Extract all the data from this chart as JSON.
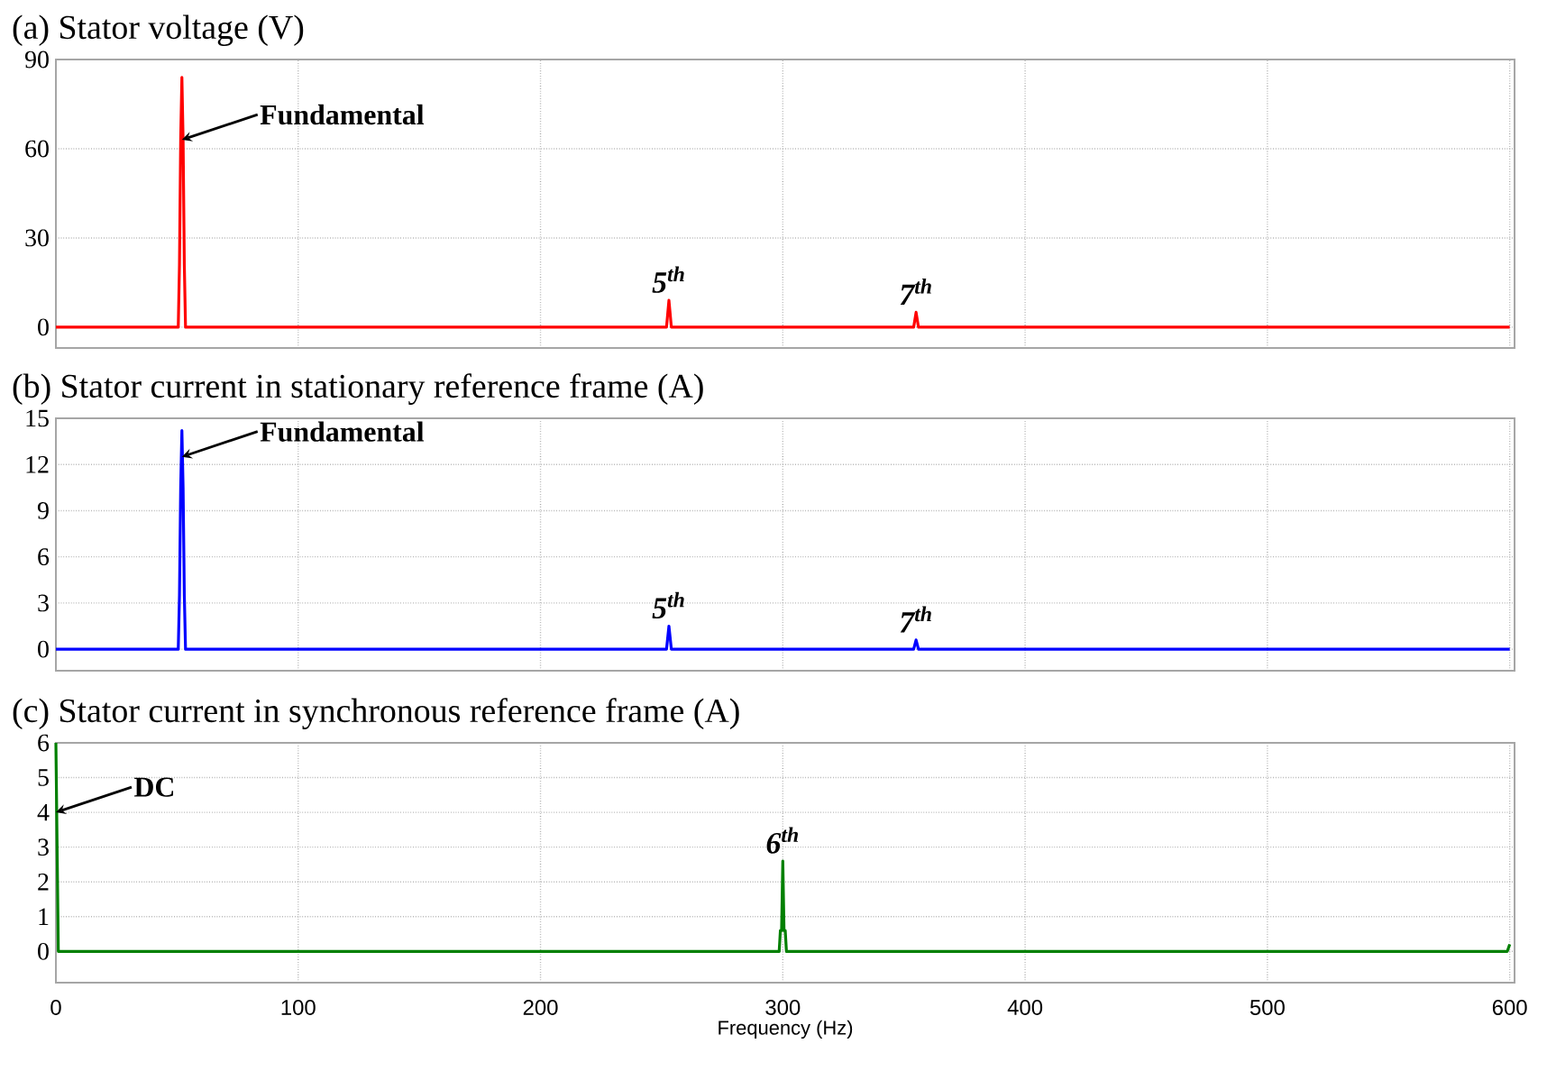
{
  "chart_data": [
    {
      "type": "line",
      "title": "(a) Stator voltage (V)",
      "x": [
        0,
        50.5,
        51,
        51.5,
        52,
        52.5,
        53,
        53.5,
        252,
        253,
        254,
        354,
        355,
        356,
        600
      ],
      "series": [
        {
          "color": "#ff0000",
          "values": [
            0,
            0,
            21,
            63,
            84,
            63,
            21,
            0,
            0,
            9,
            0,
            0,
            5,
            0,
            0
          ]
        }
      ],
      "xlim": [
        0,
        602
      ],
      "ylim": [
        -7,
        90
      ],
      "xticks": [
        0,
        100,
        200,
        300,
        400,
        500,
        600
      ],
      "yticks": [
        0,
        30,
        60,
        90
      ],
      "grid": true,
      "tick_labels": "y",
      "annotations": [
        {
          "text": "Fundamental",
          "x": 52,
          "y": 63
        },
        {
          "text": "5$^{th}$",
          "x": 253,
          "y": 9
        },
        {
          "text": "7$^{th}$",
          "x": 355,
          "y": 5
        }
      ]
    },
    {
      "type": "line",
      "title": "(b) Stator current in stationary reference frame (A)",
      "x": [
        0,
        50.5,
        51,
        51.5,
        52,
        52.5,
        53,
        53.5,
        252,
        253,
        254,
        354,
        355,
        356,
        600
      ],
      "series": [
        {
          "color": "#0000ff",
          "values": [
            0,
            0,
            3.5,
            10.5,
            14.2,
            10.5,
            3.5,
            0,
            0,
            1.5,
            0,
            0,
            0.6,
            0,
            0
          ]
        }
      ],
      "xlim": [
        0,
        602
      ],
      "ylim": [
        -1.4,
        15
      ],
      "xticks": [
        0,
        100,
        200,
        300,
        400,
        500,
        600
      ],
      "yticks": [
        0,
        3,
        6,
        9,
        12,
        15
      ],
      "grid": true,
      "tick_labels": "y",
      "annotations": [
        {
          "text": "Fundamental",
          "x": 52,
          "y": 12.5
        },
        {
          "text": "5$^{th}$",
          "x": 253,
          "y": 1.5
        },
        {
          "text": "7$^{th}$",
          "x": 355,
          "y": 0.6
        }
      ]
    },
    {
      "type": "line",
      "title": "(c) Stator current in synchronous reference frame (A)",
      "xlabel": "Frequency (Hz)",
      "x": [
        0,
        0.5,
        1,
        298.5,
        299,
        299.5,
        300,
        300.5,
        301,
        301.5,
        599,
        600
      ],
      "series": [
        {
          "color": "#008000",
          "values": [
            6,
            3,
            0,
            0,
            0.6,
            0.6,
            2.6,
            0.6,
            0.6,
            0,
            0,
            0.2
          ]
        }
      ],
      "xlim": [
        0,
        602
      ],
      "ylim": [
        -0.9,
        6
      ],
      "xticks": [
        0,
        100,
        200,
        300,
        400,
        500,
        600
      ],
      "yticks": [
        0,
        1,
        2,
        3,
        4,
        5,
        6
      ],
      "grid": true,
      "annotations": [
        {
          "text": "DC",
          "x": 0,
          "y": 4
        },
        {
          "text": "6$^{th}$",
          "x": 300,
          "y": 2.6
        }
      ]
    }
  ]
}
